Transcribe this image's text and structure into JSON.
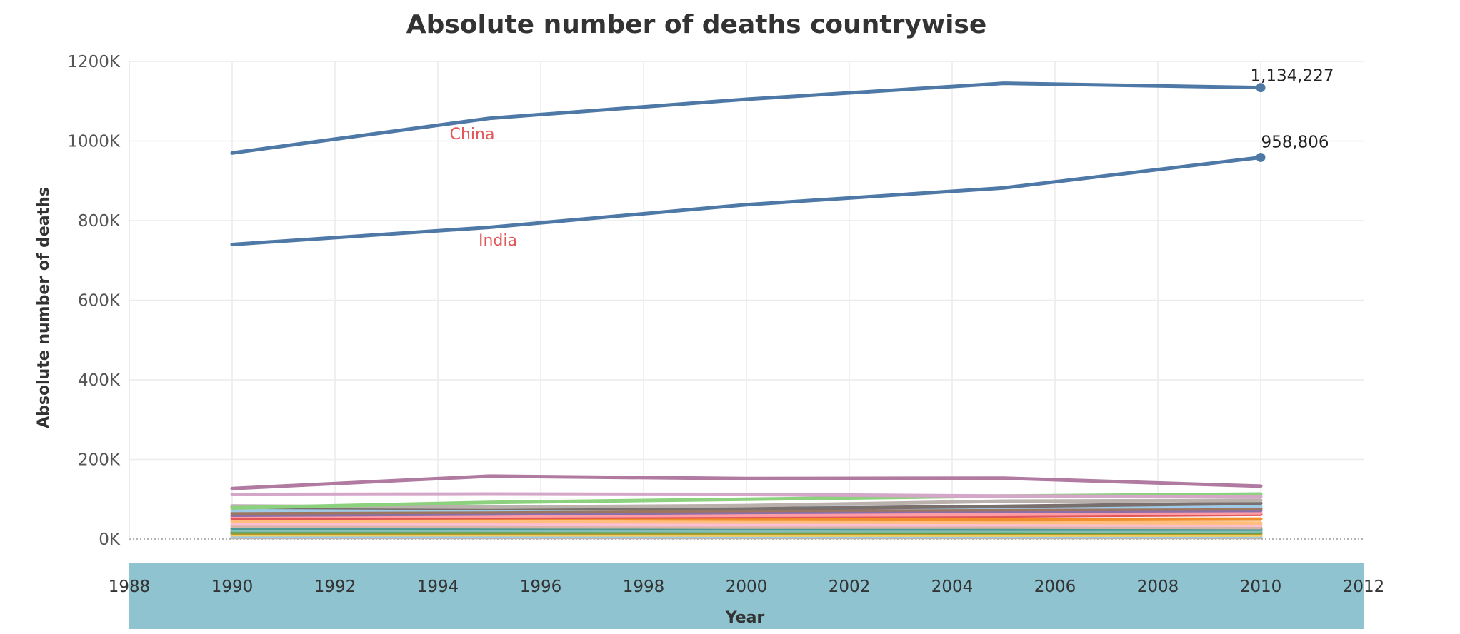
{
  "chart_data": {
    "type": "line",
    "title": "Absolute number of deaths countrywise",
    "xlabel": "Year",
    "ylabel": "Absolute number of deaths",
    "x": [
      1990,
      1995,
      2000,
      2005,
      2010
    ],
    "xlim": [
      1988,
      2012
    ],
    "xticks": [
      "1988",
      "1990",
      "1992",
      "1994",
      "1996",
      "1998",
      "2000",
      "2002",
      "2004",
      "2006",
      "2008",
      "2010",
      "2012"
    ],
    "ylim": [
      0,
      1200000
    ],
    "yticks": [
      {
        "value": 0,
        "label": "0K"
      },
      {
        "value": 200000,
        "label": "200K"
      },
      {
        "value": 400000,
        "label": "400K"
      },
      {
        "value": 600000,
        "label": "600K"
      },
      {
        "value": 800000,
        "label": "800K"
      },
      {
        "value": 1000000,
        "label": "1000K"
      },
      {
        "value": 1200000,
        "label": "1200K"
      }
    ],
    "grid": true,
    "series": [
      {
        "name": "China",
        "color": "#4e79a7",
        "values": [
          970000,
          1057000,
          1105000,
          1145000,
          1134227
        ],
        "end_label": "1,134,227"
      },
      {
        "name": "India",
        "color": "#4e79a7",
        "values": [
          740000,
          783000,
          840000,
          882000,
          958806
        ],
        "end_label": "958,806"
      },
      {
        "color": "#b07aa1",
        "values": [
          127000,
          158000,
          152000,
          153000,
          133000
        ]
      },
      {
        "color": "#d4a6c8",
        "values": [
          112000,
          113000,
          112000,
          108000,
          106000
        ]
      },
      {
        "color": "#8cd17d",
        "values": [
          78000,
          92000,
          100000,
          108000,
          113000
        ]
      },
      {
        "color": "#bab0ac",
        "values": [
          83000,
          80000,
          84000,
          95000,
          97000
        ]
      },
      {
        "color": "#79706e",
        "values": [
          80000,
          77000,
          76000,
          82000,
          90000
        ]
      },
      {
        "color": "#a0cbe8",
        "values": [
          72000,
          74000,
          78000,
          80000,
          82000
        ]
      },
      {
        "color": "#9d7660",
        "values": [
          65000,
          68000,
          72000,
          74000,
          76000
        ]
      },
      {
        "color": "#8a6fa8",
        "values": [
          60000,
          63000,
          67000,
          70000,
          72000
        ]
      },
      {
        "color": "#ff9da7",
        "values": [
          58000,
          58000,
          60000,
          62000,
          66000
        ]
      },
      {
        "color": "#e15759",
        "values": [
          52000,
          54000,
          56000,
          58000,
          62000
        ]
      },
      {
        "color": "#f28e2b",
        "values": [
          55000,
          52000,
          50000,
          49000,
          50000
        ]
      },
      {
        "color": "#ffbe7d",
        "values": [
          45000,
          44000,
          43000,
          42000,
          40000
        ]
      },
      {
        "color": "#fabfd2",
        "values": [
          38000,
          37000,
          36000,
          36000,
          35000
        ]
      },
      {
        "color": "#d7b5a6",
        "values": [
          32000,
          31000,
          30000,
          30000,
          29000
        ]
      },
      {
        "color": "#499894",
        "values": [
          26000,
          26000,
          26000,
          25000,
          25000
        ]
      },
      {
        "color": "#86bcb6",
        "values": [
          22000,
          22000,
          21000,
          21000,
          20000
        ]
      },
      {
        "color": "#59a14f",
        "values": [
          18000,
          18000,
          18000,
          17000,
          17000
        ]
      },
      {
        "color": "#b6992d",
        "values": [
          15000,
          15000,
          15000,
          14000,
          14000
        ]
      },
      {
        "color": "#4e79a7",
        "values": [
          14000,
          15000,
          16000,
          17000,
          18000
        ]
      },
      {
        "color": "#f1ce63",
        "values": [
          11000,
          11000,
          10000,
          10000,
          10000
        ]
      },
      {
        "color": "#a0cbe8",
        "values": [
          8000,
          8000,
          8000,
          7000,
          7000
        ]
      },
      {
        "color": "#bab0ac",
        "values": [
          4000,
          4000,
          4000,
          4000,
          4000
        ]
      }
    ],
    "label_positions_note": "China and India series labels shown inline"
  }
}
